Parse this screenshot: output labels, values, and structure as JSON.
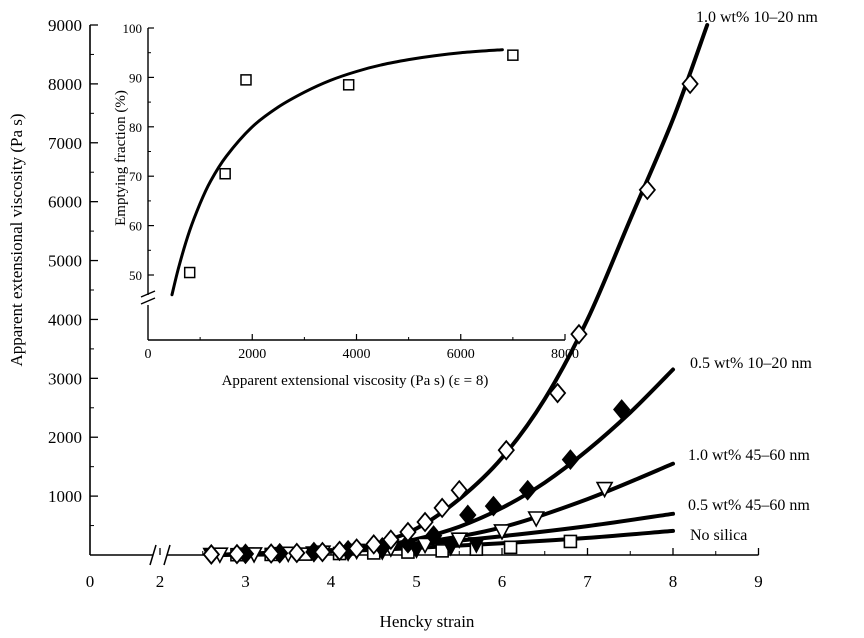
{
  "chart_data": [
    {
      "type": "line",
      "xlabel": "Hencky strain",
      "ylabel": "Apparent extensional viscosity (Pa s)",
      "xlim": [
        0,
        9
      ],
      "ylim": [
        0,
        9000
      ],
      "x_axis_break": [
        0,
        2
      ],
      "xticks": [
        0,
        2,
        3,
        4,
        5,
        6,
        7,
        8,
        9
      ],
      "yticks": [
        1000,
        2000,
        3000,
        4000,
        5000,
        6000,
        7000,
        8000,
        9000
      ],
      "grid": false,
      "series": [
        {
          "name": "1.0 wt% 10–20 nm",
          "marker": "open-diamond",
          "points": [
            [
              2.6,
              10
            ],
            [
              2.9,
              15
            ],
            [
              3.3,
              25
            ],
            [
              3.6,
              35
            ],
            [
              3.9,
              50
            ],
            [
              4.1,
              70
            ],
            [
              4.3,
              110
            ],
            [
              4.5,
              180
            ],
            [
              4.7,
              260
            ],
            [
              4.9,
              390
            ],
            [
              5.1,
              560
            ],
            [
              5.3,
              800
            ],
            [
              5.5,
              1100
            ],
            [
              6.05,
              1780
            ],
            [
              6.65,
              2750
            ],
            [
              6.9,
              3750
            ],
            [
              7.7,
              6200
            ],
            [
              8.2,
              8000
            ]
          ],
          "fit": [
            [
              2.6,
              0
            ],
            [
              3.5,
              15
            ],
            [
              4.0,
              60
            ],
            [
              4.5,
              180
            ],
            [
              5.0,
              450
            ],
            [
              5.5,
              950
            ],
            [
              6.0,
              1650
            ],
            [
              6.5,
              2650
            ],
            [
              7.0,
              4000
            ],
            [
              7.5,
              5700
            ],
            [
              8.0,
              7400
            ],
            [
              8.4,
              9000
            ]
          ]
        },
        {
          "name": "0.5 wt% 10–20 nm",
          "marker": "filled-diamond",
          "points": [
            [
              2.6,
              10
            ],
            [
              3.0,
              20
            ],
            [
              3.4,
              30
            ],
            [
              3.8,
              50
            ],
            [
              4.2,
              80
            ],
            [
              4.6,
              130
            ],
            [
              4.9,
              200
            ],
            [
              5.2,
              330
            ],
            [
              5.6,
              680
            ],
            [
              5.9,
              830
            ],
            [
              6.3,
              1100
            ],
            [
              6.8,
              1620
            ],
            [
              7.4,
              2470
            ]
          ],
          "fit": [
            [
              2.6,
              0
            ],
            [
              3.5,
              35
            ],
            [
              4.0,
              70
            ],
            [
              4.5,
              140
            ],
            [
              5.0,
              270
            ],
            [
              5.5,
              480
            ],
            [
              6.0,
              800
            ],
            [
              6.5,
              1230
            ],
            [
              7.0,
              1780
            ],
            [
              7.5,
              2420
            ],
            [
              8.0,
              3150
            ]
          ]
        },
        {
          "name": "1.0 wt% 45–60 nm",
          "marker": "open-triangle-down",
          "points": [
            [
              2.7,
              5
            ],
            [
              3.1,
              10
            ],
            [
              3.5,
              20
            ],
            [
              3.9,
              40
            ],
            [
              4.3,
              70
            ],
            [
              4.7,
              110
            ],
            [
              5.1,
              170
            ],
            [
              5.5,
              260
            ],
            [
              6.0,
              400
            ],
            [
              6.4,
              620
            ],
            [
              7.2,
              1120
            ]
          ],
          "fit": [
            [
              2.6,
              0
            ],
            [
              4.0,
              60
            ],
            [
              5.0,
              200
            ],
            [
              6.0,
              470
            ],
            [
              7.0,
              950
            ],
            [
              8.0,
              1550
            ]
          ]
        },
        {
          "name": "0.5 wt% 45–60 nm",
          "marker": "filled-triangle-down",
          "points": [
            [
              2.6,
              0
            ],
            [
              3.0,
              5
            ],
            [
              3.4,
              15
            ],
            [
              3.8,
              25
            ],
            [
              4.2,
              40
            ],
            [
              4.6,
              60
            ],
            [
              5.0,
              90
            ],
            [
              5.4,
              130
            ],
            [
              5.7,
              180
            ]
          ],
          "fit": [
            [
              2.6,
              0
            ],
            [
              4.0,
              80
            ],
            [
              5.0,
              180
            ],
            [
              6.0,
              320
            ],
            [
              7.0,
              490
            ],
            [
              8.0,
              700
            ]
          ]
        },
        {
          "name": "No silica",
          "marker": "open-square",
          "points": [
            [
              2.9,
              5
            ],
            [
              3.3,
              10
            ],
            [
              3.7,
              15
            ],
            [
              4.1,
              25
            ],
            [
              4.5,
              35
            ],
            [
              4.9,
              50
            ],
            [
              5.3,
              70
            ],
            [
              5.7,
              100
            ],
            [
              6.1,
              130
            ],
            [
              6.8,
              230
            ]
          ],
          "fit": [
            [
              2.6,
              0
            ],
            [
              4.0,
              60
            ],
            [
              5.0,
              120
            ],
            [
              6.0,
              200
            ],
            [
              7.0,
              290
            ],
            [
              8.0,
              410
            ]
          ]
        }
      ]
    },
    {
      "type": "scatter",
      "xlabel": "Apparent extensional viscosity (Pa s) (ε = 8)",
      "ylabel": "Emptying fraction (%)",
      "xlim": [
        0,
        8000
      ],
      "ylim": [
        50,
        100
      ],
      "y_axis_break": true,
      "xticks": [
        0,
        2000,
        4000,
        6000,
        8000
      ],
      "yticks": [
        50,
        60,
        70,
        80,
        90,
        100
      ],
      "marker": "open-square",
      "points": [
        [
          800,
          50.5
        ],
        [
          1480,
          70.5
        ],
        [
          1880,
          89.5
        ],
        [
          3850,
          88.5
        ],
        [
          7000,
          94.5
        ]
      ],
      "fit": [
        [
          460,
          46
        ],
        [
          600,
          52
        ],
        [
          800,
          59
        ],
        [
          1000,
          64.5
        ],
        [
          1200,
          69
        ],
        [
          1500,
          74
        ],
        [
          2000,
          80
        ],
        [
          2500,
          84
        ],
        [
          3000,
          87
        ],
        [
          3500,
          89.4
        ],
        [
          4000,
          91.2
        ],
        [
          4500,
          92.6
        ],
        [
          5000,
          93.6
        ],
        [
          5500,
          94.4
        ],
        [
          6000,
          95
        ],
        [
          6500,
          95.4
        ],
        [
          6800,
          95.6
        ]
      ]
    }
  ]
}
